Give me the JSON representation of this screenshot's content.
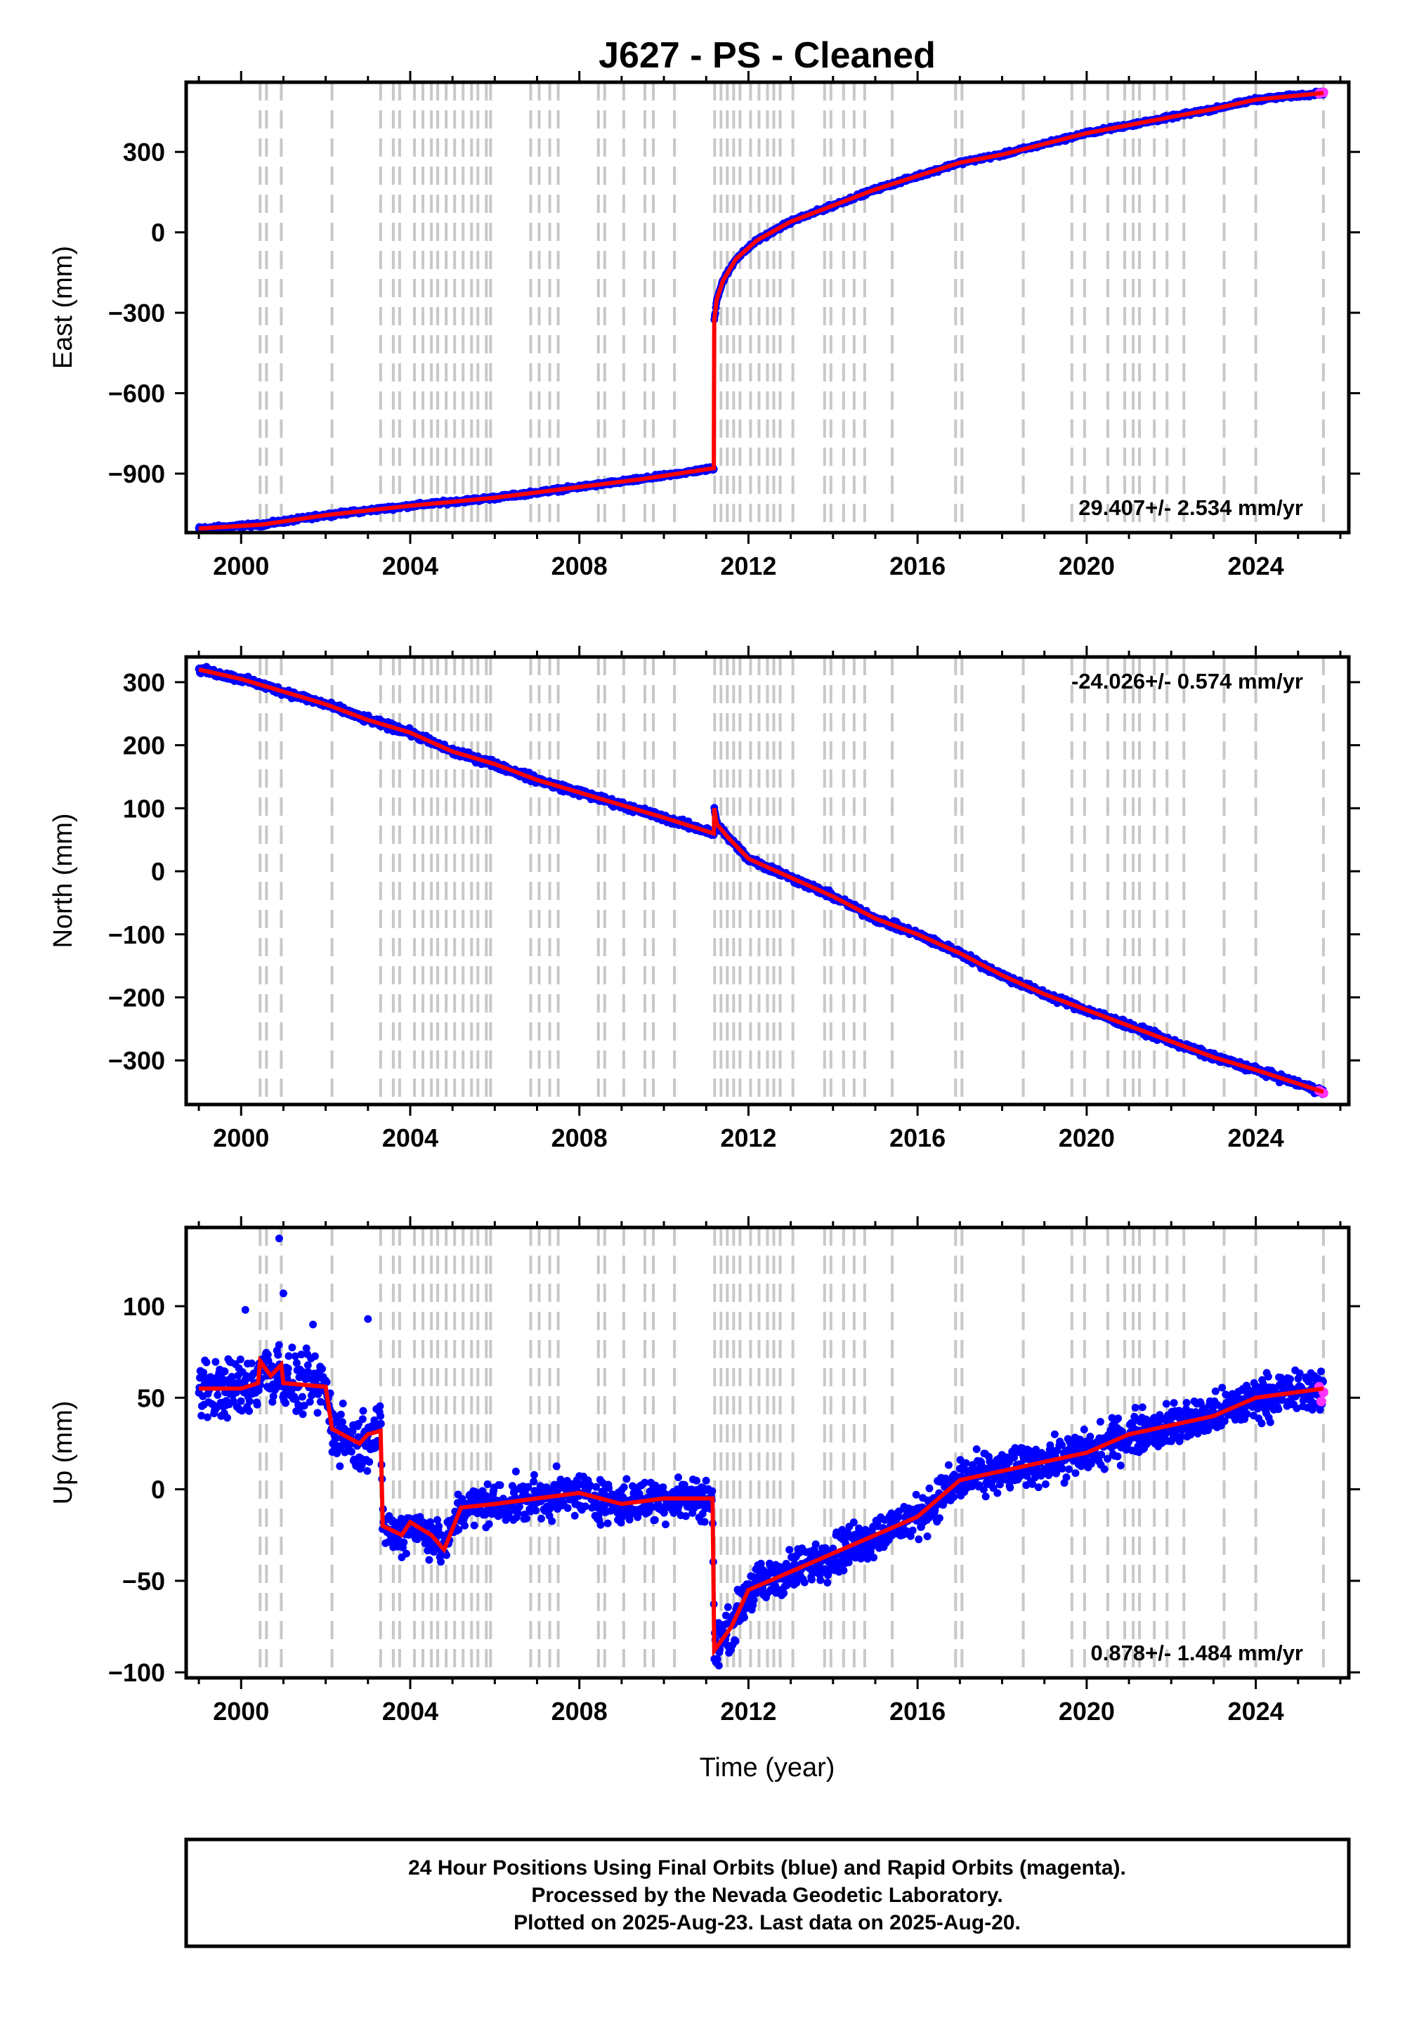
{
  "chart_data": {
    "type": "scatter",
    "title": "J627  - PS - Cleaned",
    "xlabel": "Time (year)",
    "xlim": [
      1998.7,
      2026.2
    ],
    "xticks": [
      2000,
      2004,
      2008,
      2012,
      2016,
      2020,
      2024
    ],
    "xtick_labels": [
      "2000",
      "2004",
      "2008",
      "2012",
      "2016",
      "2020",
      "2024"
    ],
    "grid": false,
    "equipment_change_lines": [
      2000.45,
      2000.6,
      2000.95,
      2002.15,
      2003.3,
      2003.6,
      2003.75,
      2004.1,
      2004.3,
      2004.5,
      2004.65,
      2004.85,
      2005.05,
      2005.25,
      2005.45,
      2005.6,
      2005.8,
      2005.9,
      2006.85,
      2007.05,
      2007.3,
      2007.5,
      2008.45,
      2008.6,
      2009.05,
      2009.55,
      2009.75,
      2010.25,
      2011.2,
      2011.35,
      2011.5,
      2011.65,
      2011.8,
      2012.05,
      2012.25,
      2012.45,
      2012.6,
      2012.75,
      2013.05,
      2013.8,
      2013.95,
      2014.25,
      2014.5,
      2014.75,
      2015.4,
      2016.9,
      2017.05,
      2018.5,
      2019.65,
      2019.95,
      2020.5,
      2020.9,
      2021.1,
      2021.25,
      2021.6,
      2021.9,
      2022.3,
      2023.25,
      2024.0,
      2025.6
    ],
    "series_colors": {
      "final_orbits": "#0000ff",
      "rapid_orbits": "#ff33ff",
      "model": "#ff0000",
      "change_lines": "#c8c8c8"
    },
    "panels": [
      {
        "name": "east",
        "ylabel": "East (mm)",
        "ylim": [
          -1120,
          560
        ],
        "yticks": [
          -900,
          -600,
          -300,
          0,
          300
        ],
        "ytick_labels": [
          "−900",
          "−600",
          "−300",
          "0",
          "300"
        ],
        "rate_label": "29.407+/- 2.534 mm/yr",
        "rate_position": "bottom-right",
        "model_points": [
          [
            1999.0,
            -1105
          ],
          [
            2000.5,
            -1090
          ],
          [
            2002.0,
            -1055
          ],
          [
            2004.0,
            -1020
          ],
          [
            2006.0,
            -990
          ],
          [
            2008.0,
            -950
          ],
          [
            2009.5,
            -920
          ],
          [
            2011.18,
            -880
          ],
          [
            2011.19,
            -330
          ],
          [
            2011.25,
            -250
          ],
          [
            2011.4,
            -180
          ],
          [
            2011.7,
            -100
          ],
          [
            2012.2,
            -30
          ],
          [
            2013.0,
            40
          ],
          [
            2014.0,
            100
          ],
          [
            2015.0,
            160
          ],
          [
            2016.0,
            210
          ],
          [
            2017.0,
            260
          ],
          [
            2018.0,
            290
          ],
          [
            2019.0,
            330
          ],
          [
            2020.0,
            370
          ],
          [
            2021.0,
            400
          ],
          [
            2022.0,
            430
          ],
          [
            2023.0,
            460
          ],
          [
            2024.0,
            495
          ],
          [
            2025.6,
            520
          ]
        ],
        "rapid_points": [
          [
            2025.5,
            518
          ],
          [
            2025.6,
            522
          ]
        ],
        "noise_mm": 5
      },
      {
        "name": "north",
        "ylabel": "North (mm)",
        "ylim": [
          -370,
          340
        ],
        "yticks": [
          -300,
          -200,
          -100,
          0,
          100,
          200,
          300
        ],
        "ytick_labels": [
          "−300",
          "−200",
          "−100",
          "0",
          "100",
          "200",
          "300"
        ],
        "rate_label": "-24.026+/- 0.574 mm/yr",
        "rate_position": "top-right",
        "model_points": [
          [
            1999.0,
            320
          ],
          [
            2000.0,
            305
          ],
          [
            2001.0,
            285
          ],
          [
            2002.0,
            265
          ],
          [
            2003.0,
            240
          ],
          [
            2004.0,
            220
          ],
          [
            2005.0,
            190
          ],
          [
            2006.0,
            170
          ],
          [
            2007.0,
            145
          ],
          [
            2008.0,
            125
          ],
          [
            2009.0,
            105
          ],
          [
            2010.0,
            85
          ],
          [
            2011.18,
            60
          ],
          [
            2011.19,
            100
          ],
          [
            2011.25,
            75
          ],
          [
            2011.5,
            55
          ],
          [
            2012.0,
            20
          ],
          [
            2013.0,
            -10
          ],
          [
            2014.0,
            -40
          ],
          [
            2015.0,
            -75
          ],
          [
            2016.0,
            -100
          ],
          [
            2017.0,
            -130
          ],
          [
            2018.0,
            -165
          ],
          [
            2019.0,
            -195
          ],
          [
            2020.0,
            -220
          ],
          [
            2021.0,
            -245
          ],
          [
            2022.0,
            -270
          ],
          [
            2023.0,
            -295
          ],
          [
            2024.0,
            -315
          ],
          [
            2025.6,
            -350
          ]
        ],
        "rapid_points": [
          [
            2025.5,
            -348
          ],
          [
            2025.6,
            -352
          ]
        ],
        "noise_mm": 4
      },
      {
        "name": "up",
        "ylabel": "Up (mm)",
        "ylim": [
          -103,
          143
        ],
        "yticks": [
          -100,
          -50,
          0,
          50,
          100
        ],
        "ytick_labels": [
          "−100",
          "−50",
          "0",
          "50",
          "100"
        ],
        "rate_label": "0.878+/- 1.484 mm/yr",
        "rate_position": "bottom-right",
        "model_points": [
          [
            1999.0,
            55
          ],
          [
            2000.0,
            55
          ],
          [
            2000.4,
            58
          ],
          [
            2000.45,
            70
          ],
          [
            2000.7,
            62
          ],
          [
            2000.95,
            68
          ],
          [
            2001.0,
            58
          ],
          [
            2002.0,
            56
          ],
          [
            2002.15,
            33
          ],
          [
            2002.8,
            25
          ],
          [
            2003.0,
            30
          ],
          [
            2003.3,
            32
          ],
          [
            2003.35,
            -20
          ],
          [
            2003.8,
            -25
          ],
          [
            2004.0,
            -18
          ],
          [
            2004.5,
            -25
          ],
          [
            2004.8,
            -33
          ],
          [
            2005.2,
            -10
          ],
          [
            2006.0,
            -8
          ],
          [
            2007.0,
            -5
          ],
          [
            2008.0,
            -2
          ],
          [
            2009.0,
            -8
          ],
          [
            2010.0,
            -5
          ],
          [
            2011.15,
            -5
          ],
          [
            2011.19,
            -88
          ],
          [
            2011.6,
            -75
          ],
          [
            2012.0,
            -55
          ],
          [
            2013.0,
            -45
          ],
          [
            2014.0,
            -35
          ],
          [
            2015.0,
            -25
          ],
          [
            2016.0,
            -15
          ],
          [
            2017.0,
            5
          ],
          [
            2018.0,
            10
          ],
          [
            2019.0,
            15
          ],
          [
            2020.0,
            20
          ],
          [
            2021.0,
            30
          ],
          [
            2022.0,
            35
          ],
          [
            2023.0,
            40
          ],
          [
            2024.0,
            50
          ],
          [
            2025.6,
            55
          ]
        ],
        "rapid_points": [
          [
            2025.5,
            56
          ],
          [
            2025.55,
            48
          ],
          [
            2025.6,
            53
          ]
        ],
        "noise_mm": 8
      }
    ],
    "footer_lines": [
      "24 Hour Positions Using Final Orbits (blue) and Rapid Orbits (magenta).",
      "Processed by the Nevada Geodetic Laboratory.",
      "Plotted on 2025-Aug-23. Last data on 2025-Aug-20."
    ]
  }
}
